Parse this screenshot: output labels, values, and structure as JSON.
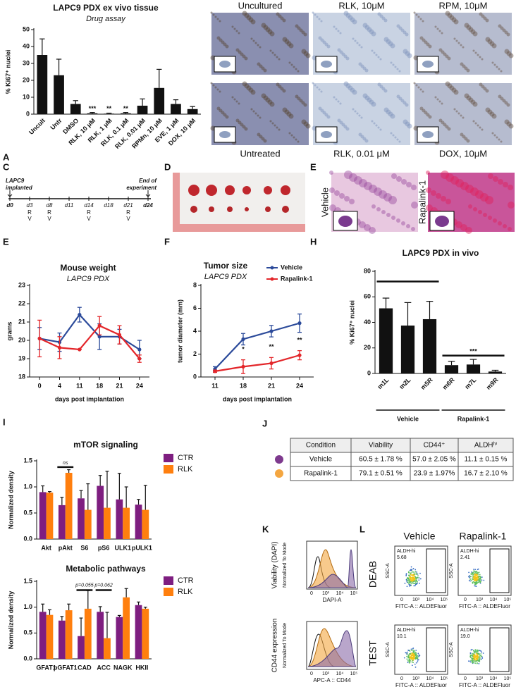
{
  "chart_data": [
    {
      "type": "bar",
      "title": "LAPC9 PDX ex vivo tissue",
      "subtitle": "Drug assay",
      "ylabel": "% Ki67⁺ nuclei",
      "categories": [
        "Uncult",
        "Untr",
        "DMSO",
        "RLK, 10 μM",
        "RLK, 1 μM",
        "RLK, 0.1 μM",
        "RLK, 0.01 μM",
        "RPMn, 10 μM",
        "EVE, 1 μM",
        "DOX, 10 μM"
      ],
      "values": [
        35,
        23,
        6,
        0.5,
        0.3,
        0.5,
        5,
        15.5,
        6,
        3
      ],
      "errors": [
        9.5,
        9.5,
        2,
        0.5,
        0.3,
        0.5,
        4,
        11,
        2.5,
        1.5
      ],
      "color": "#111111",
      "ylim": [
        0,
        50
      ],
      "yticks": [
        0,
        10,
        20,
        30,
        40,
        50
      ],
      "annotations": [
        "***",
        "**",
        "**"
      ]
    },
    {
      "type": "line",
      "title": "Mouse weight",
      "subtitle": "LAPC9 PDX",
      "ylabel": "grams",
      "xlabel": "days post implantation",
      "categories": [
        "0",
        "4",
        "11",
        "18",
        "21",
        "24"
      ],
      "series": [
        {
          "color": "#2b4a9a",
          "values": [
            20.1,
            19.9,
            21.4,
            20.2,
            20.2,
            19.5
          ],
          "errors": [
            0.6,
            0.5,
            0.4,
            0.7,
            0.4,
            0.5
          ]
        },
        {
          "color": "#e3262a",
          "values": [
            20.1,
            19.6,
            19.5,
            20.8,
            20.3,
            19.0
          ],
          "errors": [
            1.0,
            0.6,
            0.0,
            0.5,
            0.5,
            0.2
          ]
        }
      ],
      "ylim": [
        18,
        23
      ],
      "yticks": [
        18,
        19,
        20,
        21,
        22,
        23
      ]
    },
    {
      "type": "line",
      "title": "Tumor size",
      "subtitle": "LAPC9 PDX",
      "ylabel": "tumor diameter (mm)",
      "xlabel": "days post implantation",
      "categories": [
        "11",
        "18",
        "21",
        "24"
      ],
      "series": [
        {
          "name": "Vehicle",
          "color": "#2b4a9a",
          "values": [
            0.7,
            3.3,
            4.0,
            4.7
          ],
          "errors": [
            0.2,
            0.5,
            0.5,
            0.8
          ]
        },
        {
          "name": "Rapalink-1",
          "color": "#e3262a",
          "values": [
            0.5,
            0.9,
            1.2,
            1.9
          ],
          "errors": [
            0.1,
            0.6,
            0.5,
            0.4
          ]
        }
      ],
      "ylim": [
        0,
        8
      ],
      "yticks": [
        0,
        2,
        4,
        6,
        8
      ],
      "legend": "upper right",
      "annotations": [
        "*",
        "**",
        "**"
      ]
    },
    {
      "type": "bar",
      "title": "LAPC9 PDX in vivo",
      "ylabel": "% Ki67⁺ nuclei",
      "categories": [
        "m1L",
        "m2L",
        "m5R",
        "m6R",
        "m7L",
        "m9R"
      ],
      "values": [
        51,
        37.5,
        42.5,
        6.5,
        7,
        1.5
      ],
      "errors": [
        8,
        18,
        14,
        3,
        4,
        1
      ],
      "groups": [
        "Vehicle",
        "Rapalink-1"
      ],
      "color": "#111111",
      "ylim": [
        0,
        80
      ],
      "yticks": [
        0,
        20,
        40,
        60,
        80
      ],
      "annotations": [
        "***"
      ]
    },
    {
      "type": "bar",
      "title": "mTOR signaling",
      "ylabel": "Normalized density",
      "categories": [
        "Akt",
        "pAkt",
        "S6",
        "pS6",
        "ULK1",
        "pULK1"
      ],
      "series": [
        {
          "name": "CTR",
          "color": "#7e1e80",
          "values": [
            0.9,
            0.65,
            0.78,
            1.02,
            0.76,
            0.66
          ],
          "errors": [
            0.12,
            0.15,
            0.15,
            0.2,
            0.5,
            0.1
          ]
        },
        {
          "name": "RLK",
          "color": "#ff7f0e",
          "values": [
            0.89,
            1.27,
            0.56,
            0.6,
            0.6,
            0.56
          ],
          "errors": [
            0.02,
            0.06,
            0.5,
            0.7,
            0.4,
            0.47
          ]
        }
      ],
      "ylim": [
        0,
        1.5
      ],
      "yticks": [
        {
          "value": 0,
          "label": "0.0"
        },
        0.5,
        {
          "value": 1,
          "label": "1.0"
        },
        1.5
      ],
      "legend": "right",
      "annotations": [
        "ns"
      ]
    },
    {
      "type": "bar",
      "title": "Metabolic pathways",
      "ylabel": "Normalized density",
      "categories": [
        "GFAT1",
        "pGFAT1",
        "CAD",
        "ACC",
        "NAGK",
        "HKII"
      ],
      "series": [
        {
          "name": "CTR",
          "color": "#7e1e80",
          "values": [
            0.91,
            0.74,
            0.44,
            0.91,
            0.81,
            1.04
          ],
          "errors": [
            0.15,
            0.08,
            0.35,
            0.1,
            0.03,
            0.06
          ]
        },
        {
          "name": "RLK",
          "color": "#ff7f0e",
          "values": [
            0.85,
            0.94,
            0.97,
            0.4,
            1.19,
            0.97
          ],
          "errors": [
            0.1,
            0.12,
            0.35,
            0.5,
            0.17,
            0.03
          ]
        }
      ],
      "ylim": [
        0,
        1.5
      ],
      "yticks": [
        {
          "value": 0,
          "label": "0.0"
        },
        0.5,
        {
          "value": 1,
          "label": "1.0"
        },
        1.5
      ],
      "legend": "right",
      "annotations": [
        "p=0.055",
        "p=0.062"
      ]
    }
  ],
  "panels": {
    "letters": [
      "A",
      "C",
      "D",
      "E",
      "E",
      "F",
      "H",
      "I",
      "J",
      "K",
      "L"
    ],
    "images_b": [
      "Uncultured",
      "RLK, 10μM",
      "RPM, 10μM",
      "Untreated",
      "RLK, 0.01 μM",
      "DOX, 10μM"
    ],
    "timeline": {
      "start": [
        "LAPC9",
        "implanted"
      ],
      "end": [
        "End of",
        "experiment"
      ],
      "days": [
        "d0",
        "d3",
        "d8",
        "d11",
        "d14",
        "d18",
        "d21",
        "d24"
      ],
      "treatments": [
        null,
        [
          "R",
          "V"
        ],
        [
          "R",
          "V"
        ],
        null,
        [
          "R",
          "V"
        ],
        null,
        [
          "R",
          "V"
        ],
        null
      ]
    },
    "images_e": [
      "Vehicle",
      "Rapalink-1"
    ],
    "table": {
      "header": [
        "Condition",
        "Viability",
        "CD44⁺",
        "ALDHʰⁱ"
      ],
      "rows": [
        [
          "Vehicle",
          "60.5 ± 1.78 %",
          "57.0 ± 2.05 %",
          "11.1  ± 0.15 %"
        ],
        [
          "Rapalink-1",
          "79.1 ± 0.51 %",
          "23.9  ± 1.97%",
          "16.7  ± 2.10 %"
        ]
      ]
    },
    "histograms": [
      {
        "title": "Viability (DAPI)",
        "ylabel": "Normalized To Mode",
        "xlabel": "DAPI-A"
      },
      {
        "title": "CD44 expression",
        "ylabel": "Normalized To Mode",
        "xlabel": "APC-A :: CD44"
      }
    ],
    "flow": {
      "columns": [
        "Vehicle",
        "Rapalink-1"
      ],
      "rows": [
        "DEAB",
        "TEST"
      ],
      "gate": "ALDH-hi",
      "gate_values": [
        [
          "5.68",
          "2.41"
        ],
        [
          "10.1",
          "19.0"
        ]
      ],
      "ylabel": "SSC-A",
      "xlabel": "FITC-A :: ALDEFluor",
      "xticks": [
        "0",
        "10³",
        "10⁴",
        "10⁵"
      ]
    }
  }
}
